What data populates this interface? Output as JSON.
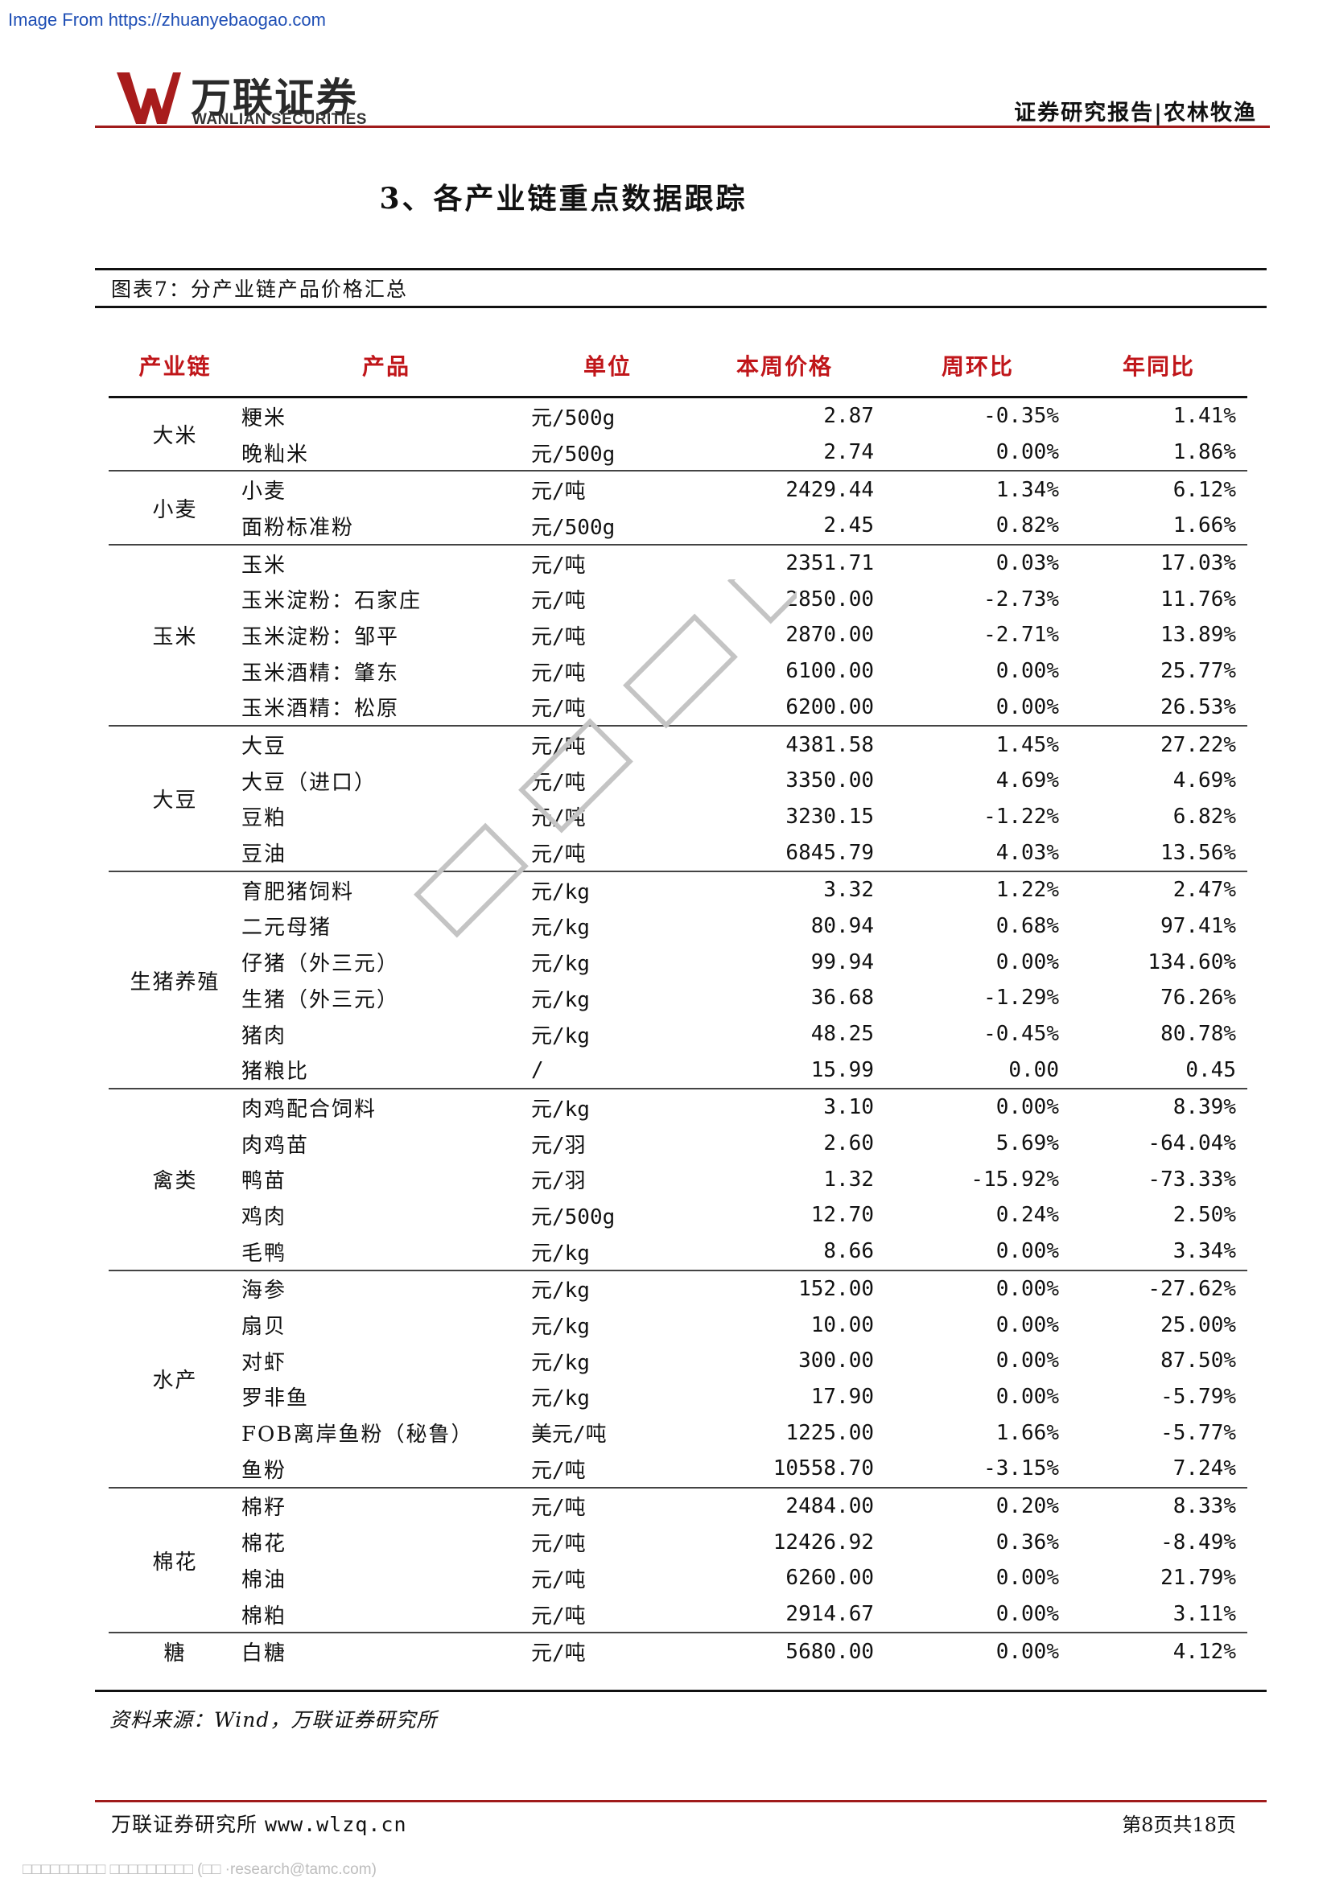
{
  "source_url": "Image From https://zhuanyebaogao.com",
  "header": {
    "logo_cn": "万联证券",
    "logo_en": "WANLIAN SECURITIES",
    "right_text": "证券研究报告|农林牧渔"
  },
  "section_title": "3、各产业链重点数据跟踪",
  "figure_title": "图表7：分产业链产品价格汇总",
  "table": {
    "headers": [
      "产业链",
      "产品",
      "单位",
      "本周价格",
      "周环比",
      "年同比"
    ],
    "rows": [
      {
        "chain": "大米",
        "product": "粳米",
        "unit": "元/500g",
        "price": "2.87",
        "wow": "-0.35%",
        "yoy": "1.41%"
      },
      {
        "product": "晚籼米",
        "unit": "元/500g",
        "price": "2.74",
        "wow": "0.00%",
        "yoy": "1.86%"
      },
      {
        "chain": "小麦",
        "product": "小麦",
        "unit": "元/吨",
        "price": "2429.44",
        "wow": "1.34%",
        "yoy": "6.12%"
      },
      {
        "product": "面粉标准粉",
        "unit": "元/500g",
        "price": "2.45",
        "wow": "0.82%",
        "yoy": "1.66%"
      },
      {
        "chain": "玉米",
        "product": "玉米",
        "unit": "元/吨",
        "price": "2351.71",
        "wow": "0.03%",
        "yoy": "17.03%"
      },
      {
        "product": "玉米淀粉：石家庄",
        "unit": "元/吨",
        "price": "2850.00",
        "wow": "-2.73%",
        "yoy": "11.76%"
      },
      {
        "product": "玉米淀粉：邹平",
        "unit": "元/吨",
        "price": "2870.00",
        "wow": "-2.71%",
        "yoy": "13.89%"
      },
      {
        "product": "玉米酒精：肇东",
        "unit": "元/吨",
        "price": "6100.00",
        "wow": "0.00%",
        "yoy": "25.77%"
      },
      {
        "product": "玉米酒精：松原",
        "unit": "元/吨",
        "price": "6200.00",
        "wow": "0.00%",
        "yoy": "26.53%"
      },
      {
        "chain": "大豆",
        "product": "大豆",
        "unit": "元/吨",
        "price": "4381.58",
        "wow": "1.45%",
        "yoy": "27.22%"
      },
      {
        "product": "大豆（进口）",
        "unit": "元/吨",
        "price": "3350.00",
        "wow": "4.69%",
        "yoy": "4.69%"
      },
      {
        "product": "豆粕",
        "unit": "元/吨",
        "price": "3230.15",
        "wow": "-1.22%",
        "yoy": "6.82%"
      },
      {
        "product": "豆油",
        "unit": "元/吨",
        "price": "6845.79",
        "wow": "4.03%",
        "yoy": "13.56%"
      },
      {
        "chain": "生猪养殖",
        "product": "育肥猪饲料",
        "unit": "元/kg",
        "price": "3.32",
        "wow": "1.22%",
        "yoy": "2.47%"
      },
      {
        "product": "二元母猪",
        "unit": "元/kg",
        "price": "80.94",
        "wow": "0.68%",
        "yoy": "97.41%"
      },
      {
        "product": "仔猪（外三元）",
        "unit": "元/kg",
        "price": "99.94",
        "wow": "0.00%",
        "yoy": "134.60%"
      },
      {
        "product": "生猪（外三元）",
        "unit": "元/kg",
        "price": "36.68",
        "wow": "-1.29%",
        "yoy": "76.26%"
      },
      {
        "product": "猪肉",
        "unit": "元/kg",
        "price": "48.25",
        "wow": "-0.45%",
        "yoy": "80.78%"
      },
      {
        "product": "猪粮比",
        "unit": "/",
        "price": "15.99",
        "wow": "0.00",
        "yoy": "0.45"
      },
      {
        "chain": "禽类",
        "product": "肉鸡配合饲料",
        "unit": "元/kg",
        "price": "3.10",
        "wow": "0.00%",
        "yoy": "8.39%"
      },
      {
        "product": "肉鸡苗",
        "unit": "元/羽",
        "price": "2.60",
        "wow": "5.69%",
        "yoy": "-64.04%"
      },
      {
        "product": "鸭苗",
        "unit": "元/羽",
        "price": "1.32",
        "wow": "-15.92%",
        "yoy": "-73.33%"
      },
      {
        "product": "鸡肉",
        "unit": "元/500g",
        "price": "12.70",
        "wow": "0.24%",
        "yoy": "2.50%"
      },
      {
        "product": "毛鸭",
        "unit": "元/kg",
        "price": "8.66",
        "wow": "0.00%",
        "yoy": "3.34%"
      },
      {
        "chain": "水产",
        "product": "海参",
        "unit": "元/kg",
        "price": "152.00",
        "wow": "0.00%",
        "yoy": "-27.62%"
      },
      {
        "product": "扇贝",
        "unit": "元/kg",
        "price": "10.00",
        "wow": "0.00%",
        "yoy": "25.00%"
      },
      {
        "product": "对虾",
        "unit": "元/kg",
        "price": "300.00",
        "wow": "0.00%",
        "yoy": "87.50%"
      },
      {
        "product": "罗非鱼",
        "unit": "元/kg",
        "price": "17.90",
        "wow": "0.00%",
        "yoy": "-5.79%"
      },
      {
        "product": "FOB离岸鱼粉（秘鲁）",
        "unit": "美元/吨",
        "price": "1225.00",
        "wow": "1.66%",
        "yoy": "-5.77%"
      },
      {
        "product": "鱼粉",
        "unit": "元/吨",
        "price": "10558.70",
        "wow": "-3.15%",
        "yoy": "7.24%"
      },
      {
        "chain": "棉花",
        "product": "棉籽",
        "unit": "元/吨",
        "price": "2484.00",
        "wow": "0.20%",
        "yoy": "8.33%"
      },
      {
        "product": "棉花",
        "unit": "元/吨",
        "price": "12426.92",
        "wow": "0.36%",
        "yoy": "-8.49%"
      },
      {
        "product": "棉油",
        "unit": "元/吨",
        "price": "6260.00",
        "wow": "0.00%",
        "yoy": "21.79%"
      },
      {
        "product": "棉粕",
        "unit": "元/吨",
        "price": "2914.67",
        "wow": "0.00%",
        "yoy": "3.11%"
      },
      {
        "chain": "糖",
        "product": "白糖",
        "unit": "元/吨",
        "price": "5680.00",
        "wow": "0.00%",
        "yoy": "4.12%"
      }
    ]
  },
  "source_note": "资料来源：Wind，万联证券研究所",
  "footer": {
    "left_cn": "万联证券研究所",
    "left_url": "www.wlzq.cn",
    "page": "第8页共18页"
  },
  "bottom_note": "□□□□□□□□□ □□□□□□□□□ (□□ ·research@tamc.com)",
  "colors": {
    "accent_red": "#c0161a",
    "brand_red": "#a01b1b"
  }
}
